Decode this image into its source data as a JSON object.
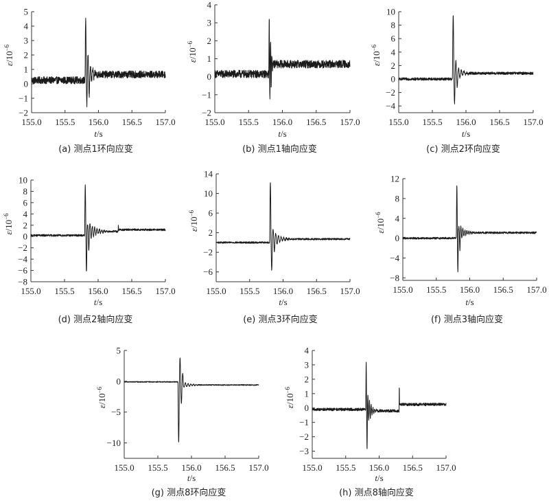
{
  "chart_data": [
    {
      "id": "a",
      "type": "line",
      "caption": "(a) 测点1环向应变",
      "xlabel_italic": "t",
      "xlabel_unit": "/s",
      "ylabel_italic": "ε",
      "ylabel_unit": "/10",
      "ylabel_exp": "−6",
      "xlim": [
        155.0,
        157.0
      ],
      "ylim": [
        -2,
        5
      ],
      "xticks": [
        "155.0",
        "155.5",
        "156.0",
        "156.5",
        "157.0"
      ],
      "xtick_values": [
        155.0,
        155.5,
        156.0,
        156.5,
        157.0
      ],
      "yticks": [
        "−2",
        "−1",
        "0",
        "1",
        "2",
        "3",
        "4",
        "5"
      ],
      "ytick_values": [
        -2,
        -1,
        0,
        1,
        2,
        3,
        4,
        5
      ],
      "signal": {
        "t_impact": 155.8,
        "baseline_before": 0.25,
        "baseline_after": 0.65,
        "noise": 0.25,
        "peaks": [
          4.6,
          -1.4,
          2.0,
          -0.8,
          1.2
        ],
        "decay": 0.55,
        "osc_period": 0.035,
        "step_time": null,
        "step_value": null
      }
    },
    {
      "id": "b",
      "type": "line",
      "caption": "(b) 测点1轴向应变",
      "xlabel_italic": "t",
      "xlabel_unit": "/s",
      "ylabel_italic": "ε",
      "ylabel_unit": "/10",
      "ylabel_exp": "−6",
      "xlim": [
        155.0,
        157.0
      ],
      "ylim": [
        -2,
        4
      ],
      "xticks": [
        "155.0",
        "155.5",
        "156.0",
        "156.5",
        "157.0"
      ],
      "xtick_values": [
        155.0,
        155.5,
        156.0,
        156.5,
        157.0
      ],
      "yticks": [
        "−2",
        "−1",
        "0",
        "1",
        "2",
        "3",
        "4"
      ],
      "ytick_values": [
        -2,
        -1,
        0,
        1,
        2,
        3,
        4
      ],
      "signal": {
        "t_impact": 155.8,
        "baseline_before": 0.15,
        "baseline_after": 0.7,
        "noise": 0.22,
        "peaks": [
          3.4,
          -1.3,
          2.0,
          -0.7,
          1.1
        ],
        "decay": 0.5,
        "osc_period": 0.02,
        "step_time": null,
        "step_value": null
      }
    },
    {
      "id": "c",
      "type": "line",
      "caption": "(c) 测点2环向应变",
      "xlabel_italic": "t",
      "xlabel_unit": "/s",
      "ylabel_italic": "ε",
      "ylabel_unit": "/10",
      "ylabel_exp": "−6",
      "xlim": [
        155.0,
        157.0
      ],
      "ylim": [
        -5,
        10
      ],
      "xticks": [
        "155.0",
        "155.5",
        "156.0",
        "156.5",
        "157.0"
      ],
      "xtick_values": [
        155.0,
        155.5,
        156.0,
        156.5,
        157.0
      ],
      "yticks": [
        "−4",
        "−2",
        "0",
        "2",
        "4",
        "6",
        "8",
        "10"
      ],
      "ytick_values": [
        -4,
        -2,
        0,
        2,
        4,
        6,
        8,
        10
      ],
      "signal": {
        "t_impact": 155.8,
        "baseline_before": 0.0,
        "baseline_after": 0.85,
        "noise": 0.2,
        "peaks": [
          9.5,
          -3.6,
          2.6,
          -1.2,
          1.6
        ],
        "decay": 0.6,
        "osc_period": 0.04,
        "step_time": null,
        "step_value": null
      }
    },
    {
      "id": "d",
      "type": "line",
      "caption": "(d) 测点2轴向应变",
      "xlabel_italic": "t",
      "xlabel_unit": "/s",
      "ylabel_italic": "ε",
      "ylabel_unit": "/10",
      "ylabel_exp": "−6",
      "xlim": [
        155.0,
        157.0
      ],
      "ylim": [
        -8,
        10
      ],
      "xticks": [
        "155.0",
        "155.5",
        "156.0",
        "156.5",
        "157.0"
      ],
      "xtick_values": [
        155.0,
        155.5,
        156.0,
        156.5,
        157.0
      ],
      "yticks": [
        "−8",
        "−6",
        "−4",
        "−2",
        "0",
        "2",
        "4",
        "6",
        "8",
        "10"
      ],
      "ytick_values": [
        -8,
        -6,
        -4,
        -2,
        0,
        2,
        4,
        6,
        8,
        10
      ],
      "signal": {
        "t_impact": 155.8,
        "baseline_before": 0.2,
        "baseline_after": 0.9,
        "noise": 0.18,
        "peaks": [
          9.0,
          -6.3,
          2.2,
          -2.6,
          2.3
        ],
        "decay": 0.7,
        "osc_period": 0.035,
        "step_time": 156.3,
        "step_value": 1.2
      }
    },
    {
      "id": "e",
      "type": "line",
      "caption": "(e) 测点3环向应变",
      "xlabel_italic": "t",
      "xlabel_unit": "/s",
      "ylabel_italic": "ε",
      "ylabel_unit": "/10",
      "ylabel_exp": "−6",
      "xlim": [
        155.0,
        157.0
      ],
      "ylim": [
        -8,
        14
      ],
      "xticks": [
        "155.0",
        "155.5",
        "156.0",
        "156.5",
        "157.0"
      ],
      "xtick_values": [
        155.0,
        155.5,
        156.0,
        156.5,
        157.0
      ],
      "yticks": [
        "−6",
        "−2",
        "2",
        "6",
        "10",
        "14"
      ],
      "ytick_values": [
        -6,
        -2,
        2,
        6,
        10,
        14
      ],
      "signal": {
        "t_impact": 155.8,
        "baseline_before": 0.0,
        "baseline_after": 0.7,
        "noise": 0.18,
        "peaks": [
          12.3,
          -5.6,
          2.7,
          -1.8,
          1.9
        ],
        "decay": 0.62,
        "osc_period": 0.04,
        "step_time": null,
        "step_value": null
      }
    },
    {
      "id": "f",
      "type": "line",
      "caption": "(f) 测点3轴向应变",
      "xlabel_italic": "t",
      "xlabel_unit": "/s",
      "ylabel_italic": "ε",
      "ylabel_unit": "/10",
      "ylabel_exp": "−6",
      "xlim": [
        155.0,
        157.0
      ],
      "ylim": [
        -8.5,
        12
      ],
      "xticks": [
        "155.0",
        "155.5",
        "156.0",
        "156.5",
        "157.0"
      ],
      "xtick_values": [
        155.0,
        155.5,
        156.0,
        156.5,
        157.0
      ],
      "yticks": [
        "−8",
        "−4",
        "0",
        "4",
        "8",
        "12"
      ],
      "ytick_values": [
        -8,
        -4,
        0,
        4,
        8,
        12
      ],
      "signal": {
        "t_impact": 155.8,
        "baseline_before": 0.0,
        "baseline_after": 1.1,
        "noise": 0.2,
        "peaks": [
          10.8,
          -6.8,
          2.4,
          -2.4,
          2.3
        ],
        "decay": 0.7,
        "osc_period": 0.03,
        "step_time": null,
        "step_value": null
      }
    },
    {
      "id": "g",
      "type": "line",
      "caption": "(g) 测点8环向应变",
      "xlabel_italic": "t",
      "xlabel_unit": "/s",
      "ylabel_italic": "ε",
      "ylabel_unit": "/10",
      "ylabel_exp": "−6",
      "xlim": [
        155.0,
        157.0
      ],
      "ylim": [
        -12.5,
        5
      ],
      "xticks": [
        "155.0",
        "155.5",
        "156.0",
        "156.5",
        "157.0"
      ],
      "xtick_values": [
        155.0,
        155.5,
        156.0,
        156.5,
        157.0
      ],
      "yticks": [
        "−10",
        "−5",
        "0",
        "5"
      ],
      "ytick_values": [
        -10,
        -5,
        0,
        5
      ],
      "signal": {
        "t_impact": 155.8,
        "baseline_before": -0.1,
        "baseline_after": -0.6,
        "noise": 0.08,
        "peaks": [
          -10.0,
          3.9,
          -3.6,
          1.3,
          -1.0
        ],
        "decay": 0.7,
        "osc_period": 0.04,
        "step_time": null,
        "step_value": null
      }
    },
    {
      "id": "h",
      "type": "line",
      "caption": "(h) 测点8轴向应变",
      "xlabel_italic": "t",
      "xlabel_unit": "/s",
      "ylabel_italic": "ε",
      "ylabel_unit": "/10",
      "ylabel_exp": "−6",
      "xlim": [
        155.0,
        157.0
      ],
      "ylim": [
        -3.5,
        4
      ],
      "xticks": [
        "155.0",
        "155.5",
        "156.0",
        "156.5",
        "157.0"
      ],
      "xtick_values": [
        155.0,
        155.5,
        156.0,
        156.5,
        157.0
      ],
      "yticks": [
        "−3",
        "−2",
        "−1",
        "0",
        "1",
        "2",
        "3",
        "4"
      ],
      "ytick_values": [
        -3,
        -2,
        -1,
        0,
        1,
        2,
        3,
        4
      ],
      "signal": {
        "t_impact": 155.8,
        "baseline_before": -0.1,
        "baseline_after": -0.2,
        "noise": 0.1,
        "peaks": [
          3.2,
          -2.9,
          0.9,
          -0.8,
          0.5
        ],
        "decay": 0.55,
        "osc_period": 0.025,
        "step_time": 156.3,
        "step_value": 0.25
      }
    }
  ]
}
